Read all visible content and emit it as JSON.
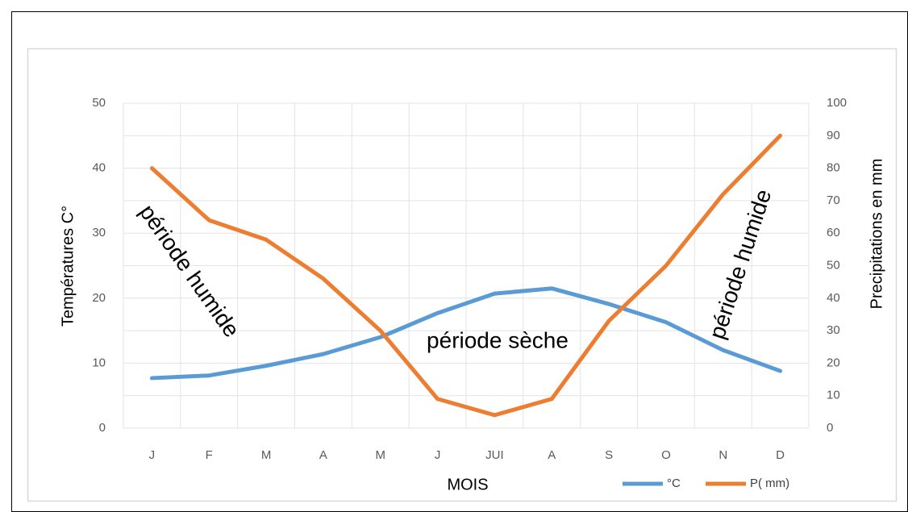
{
  "chart_data": {
    "type": "line",
    "categories": [
      "J",
      "F",
      "M",
      "A",
      "M",
      "J",
      "JUI",
      "A",
      "S",
      "O",
      "N",
      "D"
    ],
    "series": [
      {
        "name": "°C",
        "color": "#5b9bd5",
        "values": [
          7.7,
          8.1,
          9.6,
          11.4,
          14.0,
          17.7,
          20.7,
          21.5,
          19.1,
          16.3,
          12.0,
          8.8
        ]
      },
      {
        "name": "P( mm)",
        "color": "#ed7d31",
        "axis": "y2",
        "values": [
          80,
          64,
          58,
          46,
          30,
          9,
          4,
          9,
          33,
          50,
          72,
          90
        ]
      }
    ],
    "xlabel": "MOIS",
    "ylabel": "Températures C°",
    "y2label": "Precipitations en mm",
    "ylim": [
      0,
      50
    ],
    "yticks": [
      0,
      10,
      20,
      30,
      40,
      50
    ],
    "y2lim": [
      0,
      100
    ],
    "y2ticks": [
      0,
      10,
      20,
      30,
      40,
      50,
      60,
      70,
      80,
      90,
      100
    ],
    "grid": true,
    "legend": "bottom-right",
    "annotations": [
      "période humide",
      "période sèche",
      "période humide"
    ]
  }
}
